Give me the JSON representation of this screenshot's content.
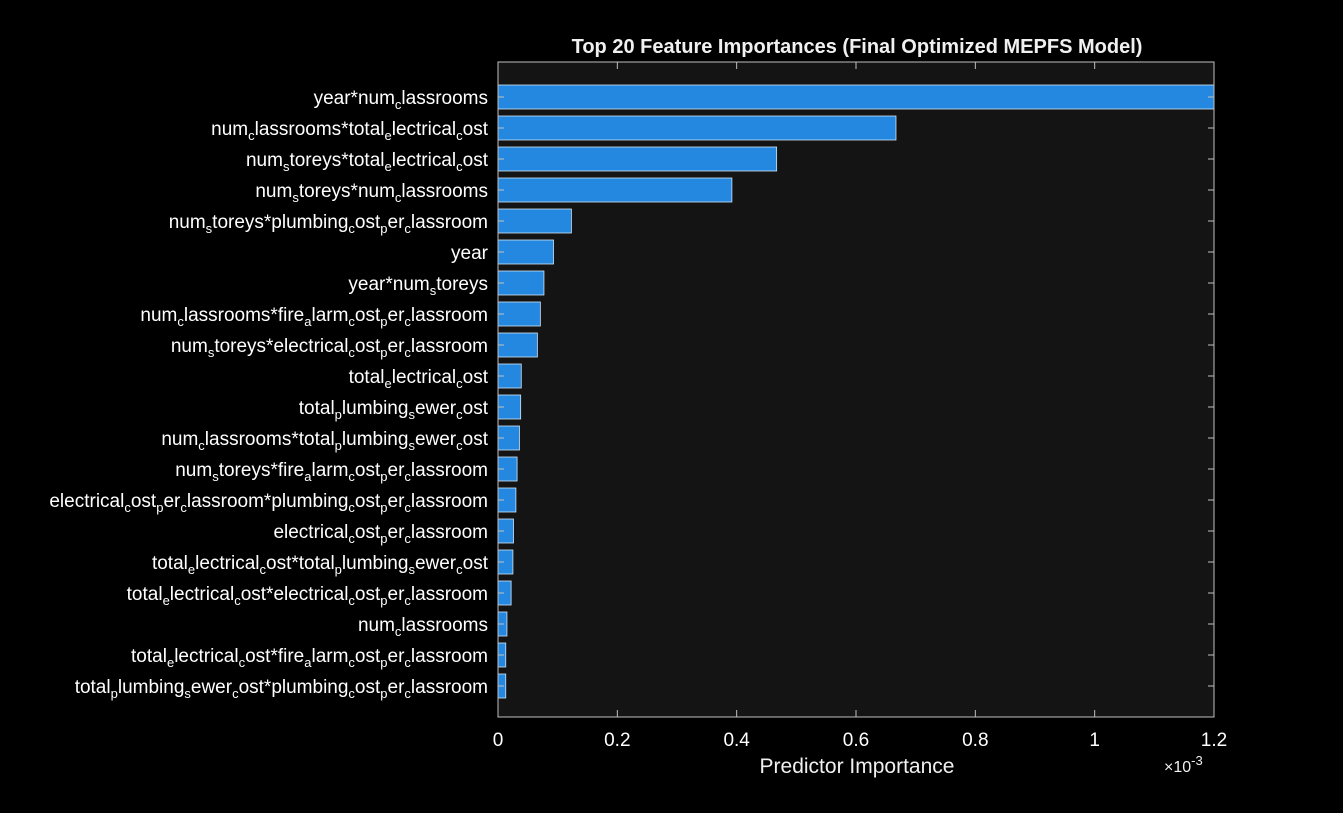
{
  "colors": {
    "background": "#000000",
    "plot_background": "#141414",
    "bar": "#2588e0",
    "bar_edge": "#cfe3f5",
    "text": "#ffffff",
    "axis": "#bfbfbf"
  },
  "chart_data": {
    "type": "bar",
    "orientation": "horizontal",
    "title": "Top 20 Feature Importances (Final Optimized MEPFS Model)",
    "xlabel": "Predictor Importance",
    "ylabel": "",
    "x_multiplier": "×10",
    "x_multiplier_exp": "-3",
    "xlim": [
      0,
      1.2
    ],
    "xticks": [
      0,
      0.2,
      0.4,
      0.6,
      0.8,
      1,
      1.2
    ],
    "xtick_labels": [
      "0",
      "0.2",
      "0.4",
      "0.6",
      "0.8",
      "1",
      "1.2"
    ],
    "grid": false,
    "categories": [
      [
        [
          "year*num",
          ""
        ],
        [
          "c",
          "s"
        ],
        [
          "lassrooms",
          ""
        ]
      ],
      [
        [
          "num",
          ""
        ],
        [
          "c",
          "s"
        ],
        [
          "lassrooms*total",
          ""
        ],
        [
          "e",
          "s"
        ],
        [
          "lectrical",
          ""
        ],
        [
          "c",
          "s"
        ],
        [
          "ost",
          ""
        ]
      ],
      [
        [
          "num",
          ""
        ],
        [
          "s",
          "s"
        ],
        [
          "toreys*total",
          ""
        ],
        [
          "e",
          "s"
        ],
        [
          "lectrical",
          ""
        ],
        [
          "c",
          "s"
        ],
        [
          "ost",
          ""
        ]
      ],
      [
        [
          "num",
          ""
        ],
        [
          "s",
          "s"
        ],
        [
          "toreys*num",
          ""
        ],
        [
          "c",
          "s"
        ],
        [
          "lassrooms",
          ""
        ]
      ],
      [
        [
          "num",
          ""
        ],
        [
          "s",
          "s"
        ],
        [
          "toreys*plumbing",
          ""
        ],
        [
          "c",
          "s"
        ],
        [
          "ost",
          ""
        ],
        [
          "p",
          "s"
        ],
        [
          "er",
          ""
        ],
        [
          "c",
          "s"
        ],
        [
          "lassroom",
          ""
        ]
      ],
      [
        [
          "year",
          ""
        ]
      ],
      [
        [
          "year*num",
          ""
        ],
        [
          "s",
          "s"
        ],
        [
          "toreys",
          ""
        ]
      ],
      [
        [
          "num",
          ""
        ],
        [
          "c",
          "s"
        ],
        [
          "lassrooms*fire",
          ""
        ],
        [
          "a",
          "s"
        ],
        [
          "larm",
          ""
        ],
        [
          "c",
          "s"
        ],
        [
          "ost",
          ""
        ],
        [
          "p",
          "s"
        ],
        [
          "er",
          ""
        ],
        [
          "c",
          "s"
        ],
        [
          "lassroom",
          ""
        ]
      ],
      [
        [
          "num",
          ""
        ],
        [
          "s",
          "s"
        ],
        [
          "toreys*electrical",
          ""
        ],
        [
          "c",
          "s"
        ],
        [
          "ost",
          ""
        ],
        [
          "p",
          "s"
        ],
        [
          "er",
          ""
        ],
        [
          "c",
          "s"
        ],
        [
          "lassroom",
          ""
        ]
      ],
      [
        [
          "total",
          ""
        ],
        [
          "e",
          "s"
        ],
        [
          "lectrical",
          ""
        ],
        [
          "c",
          "s"
        ],
        [
          "ost",
          ""
        ]
      ],
      [
        [
          "total",
          ""
        ],
        [
          "p",
          "s"
        ],
        [
          "lumbing",
          ""
        ],
        [
          "s",
          "s"
        ],
        [
          "ewer",
          ""
        ],
        [
          "c",
          "s"
        ],
        [
          "ost",
          ""
        ]
      ],
      [
        [
          "num",
          ""
        ],
        [
          "c",
          "s"
        ],
        [
          "lassrooms*total",
          ""
        ],
        [
          "p",
          "s"
        ],
        [
          "lumbing",
          ""
        ],
        [
          "s",
          "s"
        ],
        [
          "ewer",
          ""
        ],
        [
          "c",
          "s"
        ],
        [
          "ost",
          ""
        ]
      ],
      [
        [
          "num",
          ""
        ],
        [
          "s",
          "s"
        ],
        [
          "toreys*fire",
          ""
        ],
        [
          "a",
          "s"
        ],
        [
          "larm",
          ""
        ],
        [
          "c",
          "s"
        ],
        [
          "ost",
          ""
        ],
        [
          "p",
          "s"
        ],
        [
          "er",
          ""
        ],
        [
          "c",
          "s"
        ],
        [
          "lassroom",
          ""
        ]
      ],
      [
        [
          "electrical",
          ""
        ],
        [
          "c",
          "s"
        ],
        [
          "ost",
          ""
        ],
        [
          "p",
          "s"
        ],
        [
          "er",
          ""
        ],
        [
          "c",
          "s"
        ],
        [
          "lassroom*plumbing",
          ""
        ],
        [
          "c",
          "s"
        ],
        [
          "ost",
          ""
        ],
        [
          "p",
          "s"
        ],
        [
          "er",
          ""
        ],
        [
          "c",
          "s"
        ],
        [
          "lassroom",
          ""
        ]
      ],
      [
        [
          "electrical",
          ""
        ],
        [
          "c",
          "s"
        ],
        [
          "ost",
          ""
        ],
        [
          "p",
          "s"
        ],
        [
          "er",
          ""
        ],
        [
          "c",
          "s"
        ],
        [
          "lassroom",
          ""
        ]
      ],
      [
        [
          "total",
          ""
        ],
        [
          "e",
          "s"
        ],
        [
          "lectrical",
          ""
        ],
        [
          "c",
          "s"
        ],
        [
          "ost*total",
          ""
        ],
        [
          "p",
          "s"
        ],
        [
          "lumbing",
          ""
        ],
        [
          "s",
          "s"
        ],
        [
          "ewer",
          ""
        ],
        [
          "c",
          "s"
        ],
        [
          "ost",
          ""
        ]
      ],
      [
        [
          "total",
          ""
        ],
        [
          "e",
          "s"
        ],
        [
          "lectrical",
          ""
        ],
        [
          "c",
          "s"
        ],
        [
          "ost*electrical",
          ""
        ],
        [
          "c",
          "s"
        ],
        [
          "ost",
          ""
        ],
        [
          "p",
          "s"
        ],
        [
          "er",
          ""
        ],
        [
          "c",
          "s"
        ],
        [
          "lassroom",
          ""
        ]
      ],
      [
        [
          "num",
          ""
        ],
        [
          "c",
          "s"
        ],
        [
          "lassrooms",
          ""
        ]
      ],
      [
        [
          "total",
          ""
        ],
        [
          "e",
          "s"
        ],
        [
          "lectrical",
          ""
        ],
        [
          "c",
          "s"
        ],
        [
          "ost*fire",
          ""
        ],
        [
          "a",
          "s"
        ],
        [
          "larm",
          ""
        ],
        [
          "c",
          "s"
        ],
        [
          "ost",
          ""
        ],
        [
          "p",
          "s"
        ],
        [
          "er",
          ""
        ],
        [
          "c",
          "s"
        ],
        [
          "lassroom",
          ""
        ]
      ],
      [
        [
          "total",
          ""
        ],
        [
          "p",
          "s"
        ],
        [
          "lumbing",
          ""
        ],
        [
          "s",
          "s"
        ],
        [
          "ewer",
          ""
        ],
        [
          "c",
          "s"
        ],
        [
          "ost*plumbing",
          ""
        ],
        [
          "c",
          "s"
        ],
        [
          "ost",
          ""
        ],
        [
          "p",
          "s"
        ],
        [
          "er",
          ""
        ],
        [
          "c",
          "s"
        ],
        [
          "lassroom",
          ""
        ]
      ]
    ],
    "values": [
      1.2,
      0.667,
      0.467,
      0.392,
      0.123,
      0.093,
      0.077,
      0.071,
      0.066,
      0.039,
      0.038,
      0.036,
      0.032,
      0.03,
      0.026,
      0.025,
      0.022,
      0.015,
      0.013,
      0.013
    ]
  }
}
